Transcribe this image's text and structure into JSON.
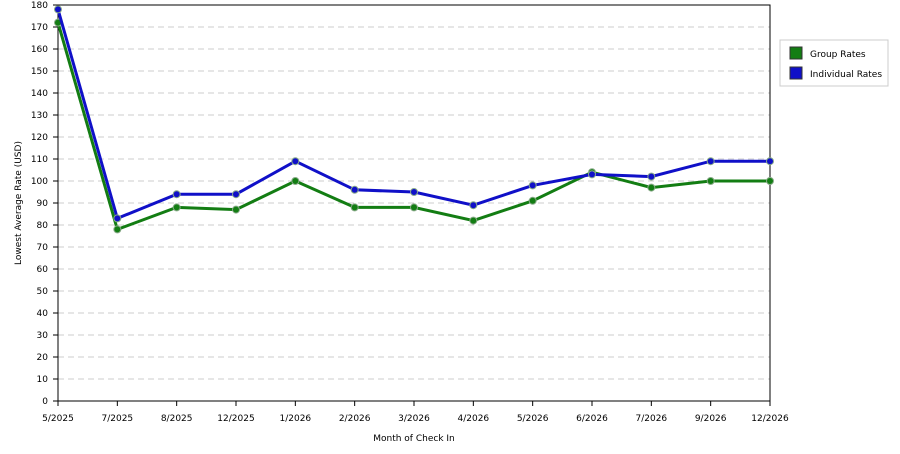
{
  "chart_data": {
    "type": "line",
    "x_label": "Month of Check In",
    "y_label": "Lowest Average Rate (USD)",
    "categories": [
      "5/2025",
      "7/2025",
      "8/2025",
      "12/2025",
      "1/2026",
      "2/2026",
      "3/2026",
      "4/2026",
      "5/2026",
      "6/2026",
      "7/2026",
      "9/2026",
      "12/2026"
    ],
    "series": [
      {
        "name": "Group Rates",
        "color": "#137d13",
        "values": [
          172,
          78,
          88,
          87,
          100,
          88,
          88,
          82,
          91,
          104,
          97,
          100,
          100
        ]
      },
      {
        "name": "Individual Rates",
        "color": "#1010c8",
        "values": [
          178,
          83,
          94,
          94,
          109,
          96,
          95,
          89,
          98,
          103,
          102,
          109,
          109
        ]
      }
    ],
    "ylim": [
      0,
      180
    ],
    "yticks": [
      0,
      10,
      20,
      30,
      40,
      50,
      60,
      70,
      80,
      90,
      100,
      110,
      120,
      130,
      140,
      150,
      160,
      170,
      180
    ],
    "grid": true,
    "legend": "right"
  }
}
